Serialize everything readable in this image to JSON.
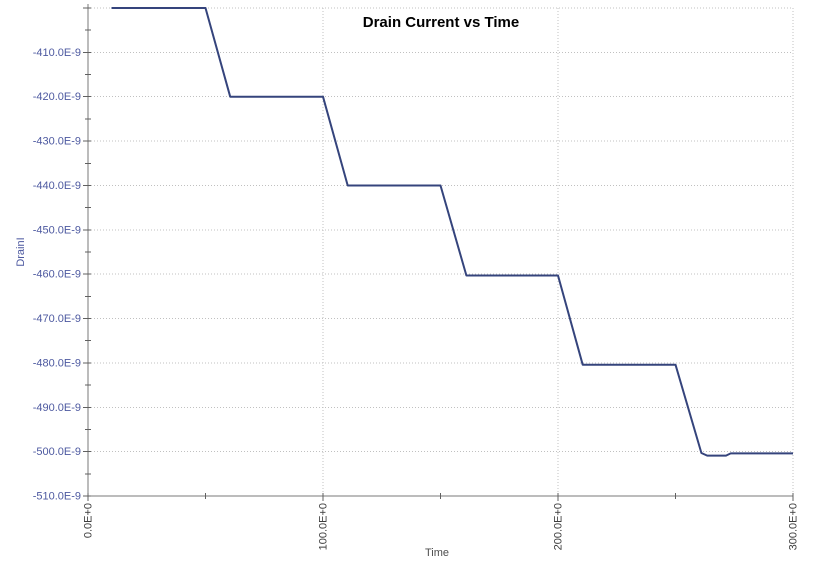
{
  "window": {
    "background": "#ffffff"
  },
  "chart_data": {
    "type": "line",
    "title": "Drain Current vs Time",
    "xlabel": "Time",
    "ylabel": "DrainI",
    "xlim": [
      0,
      300
    ],
    "ylim": [
      -510,
      -400
    ],
    "y_value_unit": "E-9",
    "grid": {
      "show": true,
      "style": "dotted",
      "legend": "none"
    },
    "x_ticks": [
      {
        "value": 0,
        "label": "0.0E+0"
      },
      {
        "value": 100,
        "label": "100.0E+0"
      },
      {
        "value": 200,
        "label": "200.0E+0"
      },
      {
        "value": 300,
        "label": "300.0E+0"
      }
    ],
    "x_minor_ticks": [
      50,
      150,
      250
    ],
    "y_ticks": [
      {
        "value": -400,
        "label": ""
      },
      {
        "value": -410,
        "label": "-410.0E-9"
      },
      {
        "value": -420,
        "label": "-420.0E-9"
      },
      {
        "value": -430,
        "label": "-430.0E-9"
      },
      {
        "value": -440,
        "label": "-440.0E-9"
      },
      {
        "value": -450,
        "label": "-450.0E-9"
      },
      {
        "value": -460,
        "label": "-460.0E-9"
      },
      {
        "value": -470,
        "label": "-470.0E-9"
      },
      {
        "value": -480,
        "label": "-480.0E-9"
      },
      {
        "value": -490,
        "label": "-490.0E-9"
      },
      {
        "value": -500,
        "label": "-500.0E-9"
      },
      {
        "value": -510,
        "label": "-510.0E-9"
      }
    ],
    "y_minor_ticks": [
      -405,
      -415,
      -425,
      -435,
      -445,
      -455,
      -465,
      -475,
      -485,
      -495,
      -505
    ],
    "series": [
      {
        "name": "Drain Current",
        "color": "#35447c",
        "points": [
          [
            10,
            -400
          ],
          [
            50,
            -400
          ],
          [
            60.5,
            -420
          ],
          [
            100,
            -420
          ],
          [
            110.5,
            -440
          ],
          [
            150,
            -440
          ],
          [
            161,
            -460.3
          ],
          [
            200,
            -460.3
          ],
          [
            210.5,
            -480.4
          ],
          [
            250,
            -480.4
          ],
          [
            261,
            -500.3
          ],
          [
            263.5,
            -500.9
          ],
          [
            271.5,
            -500.9
          ],
          [
            273.5,
            -500.4
          ],
          [
            300,
            -500.4
          ]
        ]
      }
    ],
    "colors": {
      "grid": "#c0c0c0",
      "axis": "#787878",
      "tick": "#606060",
      "y_tick_text": "#4d59a0",
      "x_tick_text": "#3d3d3d",
      "y_axis_label_text": "#4d59a0",
      "x_axis_label_text": "#4d4d4d",
      "title_text": "#000000"
    }
  }
}
